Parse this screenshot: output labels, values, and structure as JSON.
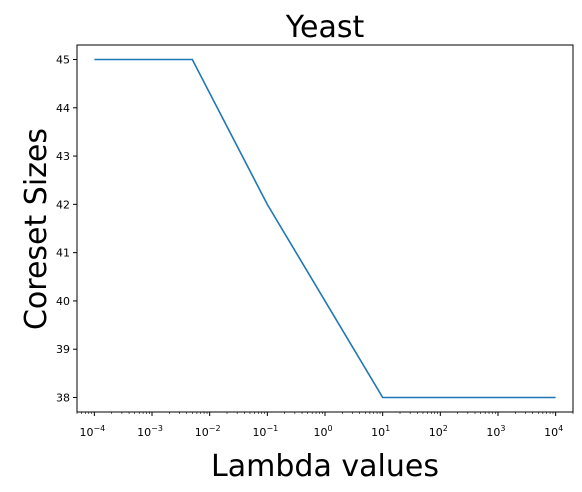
{
  "chart_data": {
    "type": "line",
    "title": "Yeast",
    "xlabel": "Lambda values",
    "ylabel": "Coreset Sizes",
    "xscale": "log",
    "xlim": [
      5e-05,
      20000
    ],
    "ylim": [
      37.7,
      45.3
    ],
    "grid": false,
    "legend": "none",
    "x_ticks": [
      {
        "value": 0.0001,
        "base": "10",
        "exp": "−4"
      },
      {
        "value": 0.001,
        "base": "10",
        "exp": "−3"
      },
      {
        "value": 0.01,
        "base": "10",
        "exp": "−2"
      },
      {
        "value": 0.1,
        "base": "10",
        "exp": "−1"
      },
      {
        "value": 1,
        "base": "10",
        "exp": "0"
      },
      {
        "value": 10,
        "base": "10",
        "exp": "1"
      },
      {
        "value": 100,
        "base": "10",
        "exp": "2"
      },
      {
        "value": 1000,
        "base": "10",
        "exp": "3"
      },
      {
        "value": 10000,
        "base": "10",
        "exp": "4"
      }
    ],
    "y_ticks": [
      "38",
      "39",
      "40",
      "41",
      "42",
      "43",
      "44",
      "45"
    ],
    "series": [
      {
        "color": "#1f77b4",
        "x": [
          0.0001,
          0.005,
          0.1,
          10,
          10000
        ],
        "y": [
          45,
          45,
          42,
          38,
          38
        ]
      }
    ]
  }
}
